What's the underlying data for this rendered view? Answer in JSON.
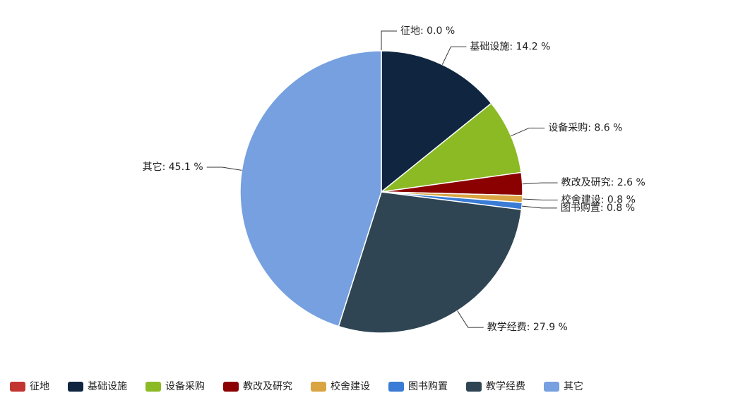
{
  "chart_data": {
    "type": "pie",
    "categories": [
      "征地",
      "基础设施",
      "设备采购",
      "教改及研究",
      "校舍建设",
      "图书购置",
      "教学经费",
      "其它"
    ],
    "values": [
      0.0,
      14.2,
      8.6,
      2.6,
      0.8,
      0.8,
      27.9,
      45.1
    ],
    "value_labels": [
      "征地: 0.0 %",
      "基础设施: 14.2 %",
      "设备采购: 8.6 %",
      "教改及研究: 2.6 %",
      "校舍建设: 0.8 %",
      "图书购置: 0.8 %",
      "教学经费: 27.9 %",
      "其它: 45.1 %"
    ],
    "colors": [
      "#c23531",
      "#0f2540",
      "#8cba24",
      "#8b0000",
      "#d9a441",
      "#3a7bd5",
      "#2f4554",
      "#76a0e0"
    ],
    "legend": "bottom"
  }
}
